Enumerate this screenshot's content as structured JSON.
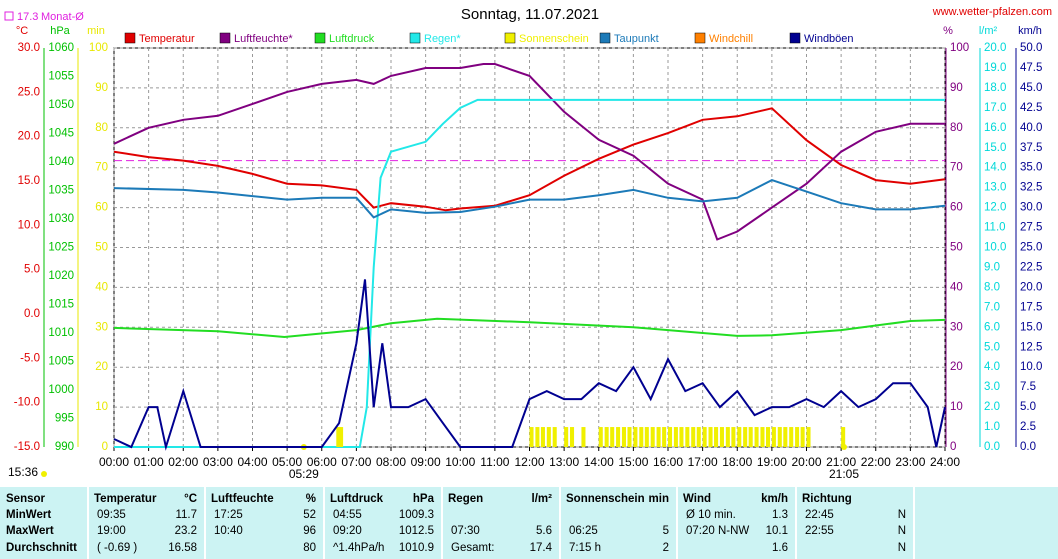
{
  "chart_data": {
    "type": "line",
    "title": "Sonntag, 11.07.2021",
    "site": "www.wetter-pfalzen.com",
    "update_time": "15:36",
    "monthly_avg": {
      "value": 17.3,
      "label": "Monat-Ø",
      "axis": "temp",
      "color": "#e020e0"
    },
    "grid": true,
    "grid_axis": "pct",
    "xlim": [
      0,
      24
    ],
    "xticks": [
      {
        "value": 0,
        "label": "00:00"
      },
      {
        "value": 1,
        "label": "01:00"
      },
      {
        "value": 2,
        "label": "02:00"
      },
      {
        "value": 3,
        "label": "03:00"
      },
      {
        "value": 4,
        "label": "04:00"
      },
      {
        "value": 5,
        "label": "05:00"
      },
      {
        "value": 6,
        "label": "06:00"
      },
      {
        "value": 7,
        "label": "07:00"
      },
      {
        "value": 8,
        "label": "08:00"
      },
      {
        "value": 9,
        "label": "09:00"
      },
      {
        "value": 10,
        "label": "10:00"
      },
      {
        "value": 11,
        "label": "11:00"
      },
      {
        "value": 12,
        "label": "12:00"
      },
      {
        "value": 13,
        "label": "13:00"
      },
      {
        "value": 14,
        "label": "14:00"
      },
      {
        "value": 15,
        "label": "15:00"
      },
      {
        "value": 16,
        "label": "16:00"
      },
      {
        "value": 17,
        "label": "17:00"
      },
      {
        "value": 18,
        "label": "18:00"
      },
      {
        "value": 19,
        "label": "19:00"
      },
      {
        "value": 20,
        "label": "20:00"
      },
      {
        "value": 21,
        "label": "21:00"
      },
      {
        "value": 22,
        "label": "22:00"
      },
      {
        "value": 23,
        "label": "23:00"
      },
      {
        "value": 24,
        "label": "24:00"
      }
    ],
    "sun_markers": [
      {
        "value": 5.483,
        "label": "05:29"
      },
      {
        "value": 21.083,
        "label": "21:05"
      }
    ],
    "axes": {
      "temp": {
        "unit": "°C",
        "color": "#e00000",
        "lim": [
          -15,
          30
        ],
        "ticks": [
          {
            "value": 30,
            "label": "30.0"
          },
          {
            "value": 25,
            "label": "25.0"
          },
          {
            "value": 20,
            "label": "20.0"
          },
          {
            "value": 15,
            "label": "15.0"
          },
          {
            "value": 10,
            "label": "10.0"
          },
          {
            "value": 5,
            "label": "5.0"
          },
          {
            "value": 0,
            "label": "0.0"
          },
          {
            "value": -5,
            "label": "-5.0"
          },
          {
            "value": -10,
            "label": "-10.0"
          },
          {
            "value": -15,
            "label": "-15.0"
          }
        ]
      },
      "press": {
        "unit": "hPa",
        "color": "#00c000",
        "lim": [
          990,
          1060
        ],
        "ticks": [
          1060,
          1055,
          1050,
          1045,
          1040,
          1035,
          1030,
          1025,
          1020,
          1015,
          1010,
          1005,
          1000,
          995,
          990
        ]
      },
      "min": {
        "unit": "min",
        "color": "#e8e800",
        "lim": [
          0,
          100
        ],
        "ticks": [
          100,
          90,
          80,
          70,
          60,
          50,
          40,
          30,
          20,
          10,
          0
        ]
      },
      "pct": {
        "unit": "%",
        "color": "#800080",
        "lim": [
          0,
          100
        ],
        "ticks": [
          100,
          90,
          80,
          70,
          60,
          50,
          40,
          30,
          20,
          10,
          0
        ]
      },
      "rain": {
        "unit": "l/m²",
        "color": "#00d8d8",
        "lim": [
          0,
          20
        ],
        "ticks": [
          {
            "value": 20,
            "label": "20.0"
          },
          {
            "value": 19,
            "label": "19.0"
          },
          {
            "value": 18,
            "label": "18.0"
          },
          {
            "value": 17,
            "label": "17.0"
          },
          {
            "value": 16,
            "label": "16.0"
          },
          {
            "value": 15,
            "label": "15.0"
          },
          {
            "value": 14,
            "label": "14.0"
          },
          {
            "value": 13,
            "label": "13.0"
          },
          {
            "value": 12,
            "label": "12.0"
          },
          {
            "value": 11,
            "label": "11.0"
          },
          {
            "value": 10,
            "label": "10.0"
          },
          {
            "value": 9,
            "label": "9.0"
          },
          {
            "value": 8,
            "label": "8.0"
          },
          {
            "value": 7,
            "label": "7.0"
          },
          {
            "value": 6,
            "label": "6.0"
          },
          {
            "value": 5,
            "label": "5.0"
          },
          {
            "value": 4,
            "label": "4.0"
          },
          {
            "value": 3,
            "label": "3.0"
          },
          {
            "value": 2,
            "label": "2.0"
          },
          {
            "value": 1,
            "label": "1.0"
          },
          {
            "value": 0,
            "label": "0.0"
          }
        ]
      },
      "wind": {
        "unit": "km/h",
        "color": "#000090",
        "lim": [
          0,
          50
        ],
        "ticks": [
          {
            "value": 50,
            "label": "50.0"
          },
          {
            "value": 47.5,
            "label": "47.5"
          },
          {
            "value": 45,
            "label": "45.0"
          },
          {
            "value": 42.5,
            "label": "42.5"
          },
          {
            "value": 40,
            "label": "40.0"
          },
          {
            "value": 37.5,
            "label": "37.5"
          },
          {
            "value": 35,
            "label": "35.0"
          },
          {
            "value": 32.5,
            "label": "32.5"
          },
          {
            "value": 30,
            "label": "30.0"
          },
          {
            "value": 27.5,
            "label": "27.5"
          },
          {
            "value": 25,
            "label": "25.0"
          },
          {
            "value": 22.5,
            "label": "22.5"
          },
          {
            "value": 20,
            "label": "20.0"
          },
          {
            "value": 17.5,
            "label": "17.5"
          },
          {
            "value": 15,
            "label": "15.0"
          },
          {
            "value": 12.5,
            "label": "12.5"
          },
          {
            "value": 10,
            "label": "10.0"
          },
          {
            "value": 7.5,
            "label": "7.5"
          },
          {
            "value": 5,
            "label": "5.0"
          },
          {
            "value": 2.5,
            "label": "2.5"
          },
          {
            "value": 0,
            "label": "0.0"
          }
        ]
      }
    },
    "series": [
      {
        "name": "Temperatur",
        "color": "#e00000",
        "axis": "temp",
        "mark": "line",
        "x": [
          0,
          1,
          2,
          3,
          4,
          5,
          6,
          7,
          7.5,
          8,
          9,
          9.58,
          10,
          11,
          12,
          13,
          14,
          15,
          16,
          17,
          18,
          19,
          20,
          21,
          22,
          23,
          24
        ],
        "values": [
          18.3,
          17.7,
          17.3,
          16.7,
          15.8,
          14.7,
          14.5,
          14.0,
          12.0,
          12.5,
          12.1,
          11.7,
          11.9,
          12.2,
          13.4,
          15.6,
          17.5,
          19.1,
          20.4,
          21.9,
          22.3,
          23.2,
          19.6,
          16.8,
          15.1,
          14.7,
          15.2
        ]
      },
      {
        "name": "Luftfeuchte*",
        "color": "#800080",
        "axis": "pct",
        "mark": "line",
        "x": [
          0,
          1,
          2,
          3,
          4,
          5,
          6,
          7,
          7.5,
          8,
          9,
          10,
          10.67,
          11,
          12,
          13,
          14,
          15,
          16,
          17,
          17.42,
          18,
          19,
          20,
          21,
          22,
          23,
          24
        ],
        "values": [
          76,
          80,
          82,
          83,
          86,
          89,
          91,
          92,
          91,
          93,
          95,
          95,
          96,
          96,
          93,
          84,
          77,
          73,
          66,
          62,
          52,
          54,
          60,
          66,
          74,
          79,
          81,
          81
        ]
      },
      {
        "name": "Luftdruck",
        "color": "#22dd22",
        "axis": "press",
        "mark": "line",
        "x": [
          0,
          3,
          4.92,
          7,
          8,
          9,
          9.33,
          12,
          15,
          18,
          19,
          21,
          23,
          24
        ],
        "values": [
          1010.9,
          1010.3,
          1009.3,
          1010.5,
          1011.7,
          1012.3,
          1012.5,
          1011.9,
          1011.0,
          1009.5,
          1009.6,
          1010.5,
          1012.1,
          1012.3
        ]
      },
      {
        "name": "Regen*",
        "color": "#22e8e8",
        "axis": "rain",
        "mark": "line",
        "x": [
          0,
          7.1,
          7.3,
          7.5,
          7.7,
          8,
          9,
          9.5,
          10,
          10.5,
          24
        ],
        "values": [
          0,
          0,
          2,
          9.0,
          13.5,
          14.8,
          15.3,
          16.2,
          17.0,
          17.4,
          17.4
        ]
      },
      {
        "name": "Sonnenschein",
        "color": "#f0f000",
        "axis": "min",
        "mark": "bar",
        "x": [
          6.42,
          6.5,
          12,
          12.17,
          12.33,
          12.5,
          12.67,
          13,
          13.17,
          13.5,
          14,
          14.17,
          14.33,
          14.5,
          14.67,
          14.83,
          15,
          15.17,
          15.33,
          15.5,
          15.67,
          15.83,
          16,
          16.17,
          16.33,
          16.5,
          16.67,
          16.83,
          17,
          17.17,
          17.33,
          17.5,
          17.67,
          17.83,
          18,
          18.17,
          18.33,
          18.5,
          18.67,
          18.83,
          19,
          19.17,
          19.33,
          19.5,
          19.67,
          19.83,
          20,
          21
        ],
        "values": [
          5,
          5,
          5,
          5,
          5,
          5,
          5,
          5,
          5,
          5,
          5,
          5,
          5,
          5,
          5,
          5,
          5,
          5,
          5,
          5,
          5,
          5,
          5,
          5,
          5,
          5,
          5,
          5,
          5,
          5,
          5,
          5,
          5,
          5,
          5,
          5,
          5,
          5,
          5,
          5,
          5,
          5,
          5,
          5,
          5,
          5,
          5,
          5
        ]
      },
      {
        "name": "Taupunkt",
        "color": "#1c7ab8",
        "axis": "temp",
        "mark": "line",
        "x": [
          0,
          2,
          3,
          4,
          5,
          6,
          7,
          7.5,
          8,
          9,
          10,
          11,
          12,
          13,
          14,
          15,
          16,
          17,
          18,
          19,
          20,
          21,
          22,
          23,
          24
        ],
        "values": [
          14.2,
          14.0,
          13.7,
          13.3,
          12.9,
          13.1,
          13.1,
          10.9,
          11.8,
          11.4,
          11.5,
          12.1,
          12.9,
          12.9,
          13.4,
          14.0,
          13.1,
          12.7,
          13.1,
          15.1,
          13.8,
          12.5,
          11.8,
          11.8,
          12.2
        ]
      },
      {
        "name": "Windchill",
        "color": "#ff8000",
        "axis": "temp",
        "mark": "line",
        "x": [],
        "values": []
      },
      {
        "name": "Windböen",
        "color": "#000090",
        "axis": "wind",
        "mark": "line",
        "x": [
          0,
          0.5,
          1,
          1.25,
          1.5,
          2,
          2.5,
          3,
          4,
          5,
          6,
          6.5,
          7,
          7.25,
          7.5,
          7.75,
          8,
          8.5,
          9,
          9.5,
          10,
          11,
          11.5,
          12,
          12.5,
          13,
          13.5,
          14,
          14.5,
          15,
          15.5,
          16,
          16.5,
          17,
          17.5,
          18,
          18.5,
          19,
          19.5,
          20,
          20.5,
          21,
          21.5,
          22,
          22.5,
          23,
          23.5,
          23.75,
          24
        ],
        "values": [
          1,
          0,
          5,
          5,
          0,
          7,
          0,
          0,
          0,
          0,
          0,
          3,
          13,
          21,
          5,
          13,
          5,
          5,
          6,
          3,
          0,
          0,
          0,
          6,
          7,
          6,
          6,
          8,
          7,
          10,
          6,
          11,
          7,
          8,
          5,
          7,
          4,
          5,
          5,
          6,
          5,
          7,
          5,
          6,
          8,
          8,
          5,
          0,
          5
        ]
      }
    ]
  },
  "table": {
    "row_labels": [
      "Sensor",
      "MinWert",
      "MaxWert",
      "Durchschnitt"
    ],
    "groups": [
      {
        "title": "Temperatur",
        "unit": "°C",
        "rows": [
          [
            "09:35",
            "11.7"
          ],
          [
            "19:00",
            "23.2"
          ],
          [
            "( -0.69 )",
            "16.58"
          ]
        ]
      },
      {
        "title": "Luftfeuchte",
        "unit": "%",
        "rows": [
          [
            "17:25",
            "52"
          ],
          [
            "10:40",
            "96"
          ],
          [
            null,
            "80"
          ]
        ]
      },
      {
        "title": "Luftdruck",
        "unit": "hPa",
        "rows": [
          [
            "04:55",
            "1009.3"
          ],
          [
            "09:20",
            "1012.5"
          ],
          [
            "^1.4hPa/h",
            "1010.9"
          ]
        ]
      },
      {
        "title": "Regen",
        "unit": "l/m²",
        "rows": [
          [
            null,
            null
          ],
          [
            "07:30",
            "5.6"
          ],
          [
            "Gesamt:",
            "17.4"
          ]
        ]
      },
      {
        "title": "Sonnenschein",
        "unit": "min",
        "rows": [
          [
            null,
            null
          ],
          [
            "06:25",
            "5"
          ],
          [
            "7:15 h",
            "2"
          ]
        ]
      },
      {
        "title": "Wind",
        "unit": "km/h",
        "rows": [
          [
            "Ø 10 min.",
            "1.3"
          ],
          [
            "07:20   N-NW",
            "10.1"
          ],
          [
            null,
            "1.6"
          ]
        ]
      },
      {
        "title": "Richtung",
        "rows": [
          [
            "22:45",
            "N"
          ],
          [
            "22:55",
            "N"
          ],
          [
            null,
            "N"
          ]
        ]
      }
    ]
  }
}
